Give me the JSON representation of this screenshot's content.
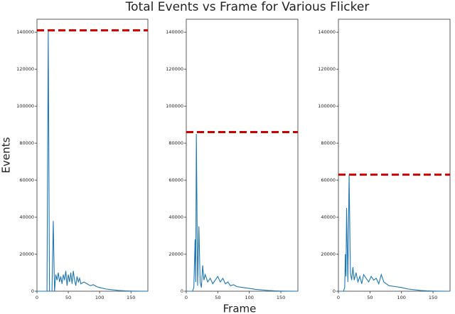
{
  "title": "Total Events vs Frame for Various Flicker",
  "x_label": "Frame",
  "y_label": "Events",
  "chart_data": [
    {
      "type": "line",
      "x": [
        0,
        16,
        18,
        20,
        24,
        26,
        28,
        30,
        32,
        34,
        36,
        38,
        40,
        42,
        44,
        46,
        48,
        50,
        52,
        54,
        56,
        58,
        60,
        62,
        64,
        66,
        68,
        70,
        75,
        80,
        85,
        90,
        95,
        100,
        110,
        120,
        130,
        140,
        150,
        160,
        177
      ],
      "series": [
        {
          "color": "#1f77b4",
          "values": [
            0,
            0,
            141000,
            0,
            0,
            38000,
            0,
            9000,
            6000,
            10000,
            5000,
            8000,
            4000,
            9000,
            6000,
            11000,
            3000,
            9000,
            5000,
            10000,
            4000,
            11000,
            6000,
            3000,
            8000,
            5000,
            7000,
            4000,
            5000,
            4000,
            3000,
            3500,
            2500,
            2000,
            1200,
            800,
            400,
            200,
            100,
            50,
            0
          ]
        }
      ],
      "hline": {
        "value": 141000,
        "color": "#cc0000"
      },
      "xlim": [
        0,
        177
      ],
      "ylim": [
        0,
        147000
      ],
      "xticks": [
        0,
        50,
        100,
        150
      ],
      "yticks": [
        0,
        20000,
        40000,
        60000,
        80000,
        100000,
        120000,
        140000
      ]
    },
    {
      "type": "line",
      "x": [
        0,
        10,
        12,
        14,
        15,
        16,
        18,
        20,
        22,
        24,
        26,
        28,
        30,
        34,
        38,
        42,
        46,
        50,
        54,
        58,
        62,
        66,
        70,
        75,
        80,
        90,
        100,
        110,
        120,
        130,
        140,
        150,
        160,
        177
      ],
      "series": [
        {
          "color": "#1f77b4",
          "values": [
            0,
            0,
            2000,
            28000,
            5000,
            85000,
            3000,
            35000,
            5000,
            2000,
            14000,
            6000,
            9000,
            5000,
            7000,
            4000,
            6000,
            8000,
            5000,
            7000,
            4000,
            5000,
            3000,
            3500,
            2500,
            2000,
            1500,
            1000,
            700,
            400,
            200,
            100,
            50,
            0
          ]
        }
      ],
      "hline": {
        "value": 86000,
        "color": "#cc0000"
      },
      "xlim": [
        0,
        177
      ],
      "ylim": [
        0,
        147000
      ],
      "xticks": [
        0,
        50,
        100,
        150
      ],
      "yticks": [
        0,
        20000,
        40000,
        60000,
        80000,
        100000,
        120000,
        140000
      ]
    },
    {
      "type": "line",
      "x": [
        0,
        8,
        10,
        11,
        12,
        13,
        15,
        17,
        19,
        21,
        23,
        25,
        28,
        31,
        34,
        37,
        40,
        44,
        48,
        52,
        56,
        60,
        64,
        68,
        72,
        76,
        80,
        90,
        100,
        110,
        120,
        130,
        140,
        150,
        160,
        177
      ],
      "series": [
        {
          "color": "#1f77b4",
          "values": [
            0,
            0,
            2000,
            20000,
            8000,
            45000,
            5000,
            63000,
            10000,
            6000,
            13000,
            6000,
            10000,
            5000,
            8000,
            4000,
            9000,
            7000,
            5000,
            8000,
            6000,
            7000,
            4000,
            9000,
            5000,
            4000,
            3000,
            2500,
            2000,
            1200,
            800,
            400,
            200,
            100,
            50,
            0
          ]
        }
      ],
      "hline": {
        "value": 63000,
        "color": "#cc0000"
      },
      "xlim": [
        0,
        177
      ],
      "ylim": [
        0,
        147000
      ],
      "xticks": [
        0,
        50,
        100,
        150
      ],
      "yticks": [
        0,
        20000,
        40000,
        60000,
        80000,
        100000,
        120000,
        140000
      ]
    }
  ]
}
